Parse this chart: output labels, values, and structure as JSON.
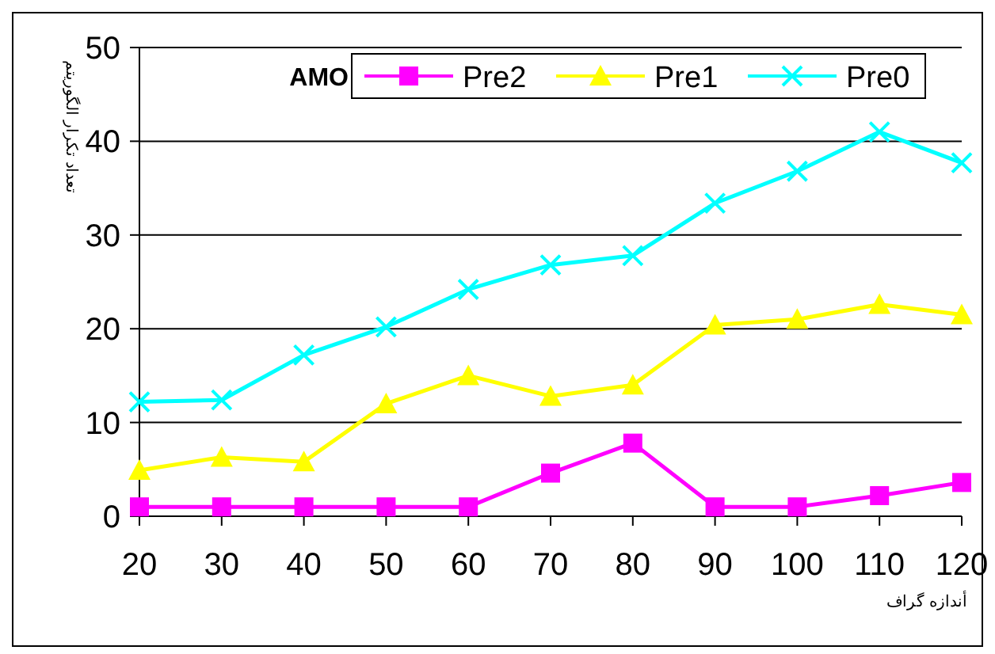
{
  "chart_data": {
    "type": "line",
    "xlabel": "أندازه گراف",
    "ylabel": "تعداد تکرار الگوریتم",
    "legend_title": "AMO",
    "x": [
      20,
      30,
      40,
      50,
      60,
      70,
      80,
      90,
      100,
      110,
      120
    ],
    "series": [
      {
        "name": "Pre2",
        "color": "#ff00ff",
        "marker": "square",
        "values": [
          1,
          1,
          1,
          1,
          1,
          4.6,
          7.8,
          1,
          1,
          2.2,
          3.6
        ]
      },
      {
        "name": "Pre1",
        "color": "#ffff00",
        "marker": "triangle",
        "values": [
          4.9,
          6.3,
          5.8,
          12,
          15,
          12.8,
          14,
          20.4,
          21,
          22.6,
          21.5
        ]
      },
      {
        "name": "Pre0",
        "color": "#00ffff",
        "marker": "cross",
        "values": [
          12.2,
          12.4,
          17.2,
          20.2,
          24.2,
          26.8,
          27.8,
          33.4,
          36.8,
          41,
          37.7
        ]
      }
    ],
    "xlim": [
      20,
      120
    ],
    "xticks": [
      20,
      30,
      40,
      50,
      60,
      70,
      80,
      90,
      100,
      110,
      120
    ],
    "ylim": [
      0,
      50
    ],
    "yticks": [
      0,
      10,
      20,
      30,
      40,
      50
    ],
    "grid": "y",
    "legend": "top",
    "line_style": "solid"
  }
}
